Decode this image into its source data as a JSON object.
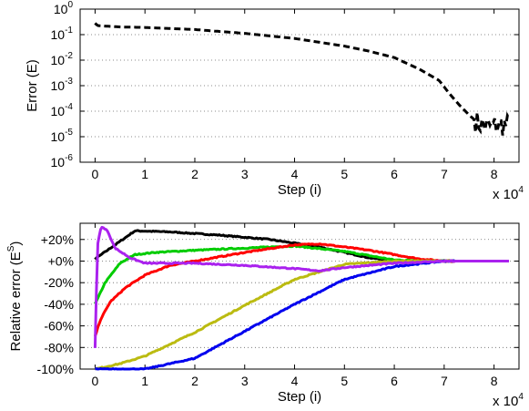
{
  "chart_data": [
    {
      "type": "line",
      "xlabel": "Step (i)",
      "ylabel": "Error (E)",
      "x_multiplier_label": "x 10",
      "x_multiplier_exp": "4",
      "xlim": [
        -0.3,
        8.5
      ],
      "xticks": [
        "0",
        "1",
        "2",
        "3",
        "4",
        "5",
        "6",
        "7",
        "8"
      ],
      "y_scale": "log",
      "ylim_exp": [
        -6,
        0
      ],
      "yticks": [
        {
          "base": "10",
          "exp": "0"
        },
        {
          "base": "10",
          "exp": "-1"
        },
        {
          "base": "10",
          "exp": "-2"
        },
        {
          "base": "10",
          "exp": "-3"
        },
        {
          "base": "10",
          "exp": "-4"
        },
        {
          "base": "10",
          "exp": "-5"
        },
        {
          "base": "10",
          "exp": "-6"
        }
      ],
      "grid": "horizontal-dotted",
      "series": [
        {
          "color": "#000000",
          "style": "dashed",
          "x": [
            0.0,
            0.05,
            0.5,
            1.0,
            2.0,
            3.0,
            4.0,
            5.0,
            5.5,
            6.0,
            6.5,
            6.9,
            7.1,
            7.3,
            7.5,
            7.7,
            7.9,
            8.1,
            8.3
          ],
          "y_log10": [
            -0.55,
            -0.65,
            -0.7,
            -0.72,
            -0.8,
            -0.95,
            -1.15,
            -1.45,
            -1.65,
            -1.9,
            -2.35,
            -2.8,
            -3.3,
            -3.75,
            -4.15,
            -4.5,
            -4.6,
            -4.55,
            -4.55
          ],
          "noisy_from_x": 7.6
        }
      ]
    },
    {
      "type": "line",
      "xlabel": "Step (i)",
      "ylabel": "Relative error (E",
      "ylabel_sup": "S",
      "ylabel_close": ")",
      "x_multiplier_label": "x 10",
      "x_multiplier_exp": "4",
      "xlim": [
        -0.3,
        8.5
      ],
      "xticks": [
        "0",
        "1",
        "2",
        "3",
        "4",
        "5",
        "6",
        "7",
        "8"
      ],
      "ylim": [
        -100,
        35
      ],
      "yticks": [
        "+20%",
        "+0%",
        "-20%",
        "-40%",
        "-60%",
        "-80%",
        "-100%"
      ],
      "ytick_values": [
        20,
        0,
        -20,
        -40,
        -60,
        -80,
        -100
      ],
      "grid": "horizontal-dotted",
      "series": [
        {
          "color": "#000000",
          "x": [
            0.0,
            0.4,
            0.8,
            1.5,
            2.5,
            3.5,
            4.5,
            5.5,
            6.0,
            6.5,
            7.0,
            8.3
          ],
          "y": [
            2,
            15,
            28,
            27,
            24,
            20,
            13,
            3,
            0,
            -1,
            0,
            0
          ]
        },
        {
          "color": "#00cc00",
          "x": [
            0.0,
            0.2,
            0.5,
            0.8,
            1.2,
            2.0,
            3.0,
            4.0,
            5.0,
            6.0,
            7.0,
            8.3
          ],
          "y": [
            -40,
            -20,
            -2,
            6,
            8,
            10,
            12,
            14,
            9,
            1,
            0,
            0
          ]
        },
        {
          "color": "#ff0000",
          "x": [
            0.0,
            0.1,
            0.3,
            0.6,
            1.0,
            1.5,
            2.0,
            3.0,
            4.0,
            4.5,
            5.5,
            6.5,
            7.0,
            8.3
          ],
          "y": [
            -70,
            -55,
            -38,
            -25,
            -13,
            -4,
            0,
            8,
            15,
            16,
            10,
            2,
            0,
            0
          ]
        },
        {
          "color": "#bbbb11",
          "x": [
            0.0,
            0.5,
            1.0,
            2.0,
            3.0,
            4.0,
            5.0,
            6.0,
            7.0,
            8.3
          ],
          "y": [
            -100,
            -95,
            -88,
            -66,
            -41,
            -17,
            -3,
            0,
            0,
            0
          ]
        },
        {
          "color": "#0000ee",
          "x": [
            0.0,
            1.0,
            2.0,
            3.0,
            4.0,
            5.0,
            6.0,
            7.0,
            8.3
          ],
          "y": [
            -100,
            -100,
            -90,
            -65,
            -40,
            -17,
            -5,
            0,
            0
          ]
        },
        {
          "color": "#aa22ee",
          "x": [
            0.0,
            0.05,
            0.12,
            0.25,
            0.4,
            0.7,
            1.0,
            2.0,
            3.0,
            4.0,
            4.5,
            5.0,
            6.0,
            7.0,
            8.3
          ],
          "y": [
            -80,
            15,
            32,
            28,
            12,
            3,
            -2,
            -2,
            -4,
            -7,
            -9,
            -6,
            -2,
            0,
            0
          ]
        }
      ]
    }
  ]
}
